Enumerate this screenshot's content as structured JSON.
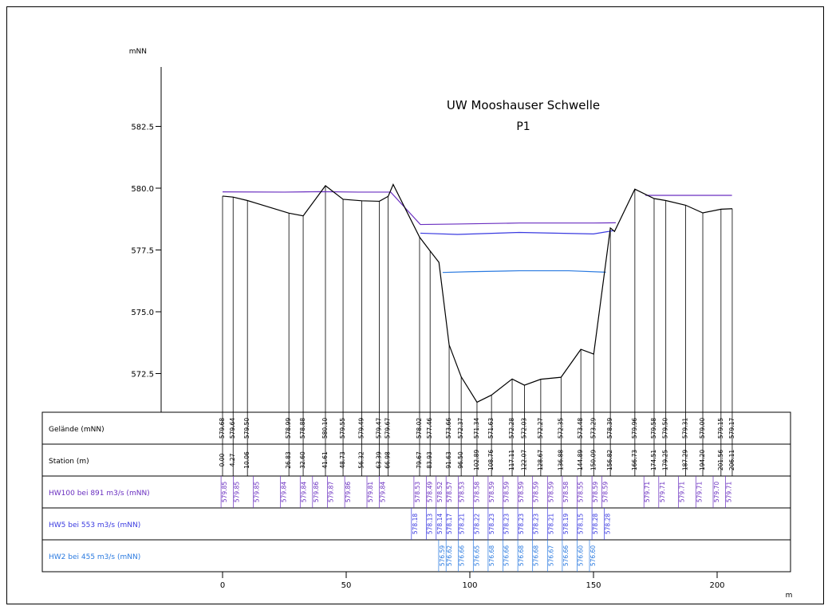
{
  "chart_data": {
    "type": "line",
    "title": "UW Mooshauser Schwelle",
    "subtitle": "P1",
    "ylabel": "mNN",
    "xlabel": "m",
    "ylim": [
      571.0,
      585.0
    ],
    "y_ticks": [
      "582.5",
      "580.0",
      "577.5",
      "575.0",
      "572.5"
    ],
    "y_tick_values": [
      582.5,
      580.0,
      577.5,
      575.0,
      572.5
    ],
    "xlim": [
      -20,
      225
    ],
    "x_ticks": [
      "0",
      "50",
      "100",
      "150",
      "200"
    ],
    "x_tick_values": [
      0,
      50,
      100,
      150,
      200
    ],
    "grid": false,
    "colors": {
      "terrain": "#000000",
      "hw100": "#6a2fc0",
      "hw5": "#3a3ae0",
      "hw2": "#2a7ae0"
    },
    "terrain": {
      "name": "Gelände (mNN)",
      "x": [
        0.0,
        4.27,
        10.06,
        26.83,
        32.6,
        41.61,
        48.73,
        56.32,
        63.39,
        66.98,
        69.0,
        79.67,
        83.93,
        87.5,
        91.63,
        96.5,
        102.89,
        108.76,
        117.11,
        122.07,
        128.67,
        136.88,
        144.89,
        150.09,
        156.82,
        158.5,
        166.73,
        174.51,
        179.25,
        187.29,
        194.2,
        201.56,
        206.11
      ],
      "y": [
        579.68,
        579.64,
        579.5,
        578.99,
        578.88,
        580.1,
        579.55,
        579.49,
        579.47,
        579.67,
        580.15,
        578.02,
        577.46,
        577.0,
        573.66,
        572.37,
        571.34,
        571.63,
        572.28,
        572.03,
        572.27,
        572.35,
        573.48,
        573.29,
        578.39,
        578.25,
        579.96,
        579.58,
        579.5,
        579.31,
        579.0,
        579.15,
        579.17
      ]
    },
    "stations": [
      "0.00",
      "4.27",
      "10.06",
      "26.83",
      "32.60",
      "41.61",
      "48.73",
      "56.32",
      "63.39",
      "66.98",
      "79.67",
      "83.93",
      "91.63",
      "96.50",
      "102.89",
      "108.76",
      "117.11",
      "122.07",
      "128.67",
      "136.88",
      "144.89",
      "150.09",
      "156.82",
      "166.73",
      "174.51",
      "179.25",
      "187.29",
      "194.20",
      "201.56",
      "206.11"
    ],
    "station_x": [
      0.0,
      4.27,
      10.06,
      26.83,
      32.6,
      41.61,
      48.73,
      56.32,
      63.39,
      66.98,
      79.67,
      83.93,
      91.63,
      96.5,
      102.89,
      108.76,
      117.11,
      122.07,
      128.67,
      136.88,
      144.89,
      150.09,
      156.82,
      166.73,
      174.51,
      179.25,
      187.29,
      194.2,
      201.56,
      206.11
    ],
    "gelaende": [
      "579.68",
      "579.64",
      "579.50",
      "578.99",
      "578.88",
      "580.10",
      "579.55",
      "579.49",
      "579.47",
      "579.67",
      "578.02",
      "577.46",
      "573.66",
      "572.37",
      "571.34",
      "571.63",
      "572.28",
      "572.03",
      "572.27",
      "572.35",
      "573.48",
      "573.29",
      "578.39",
      "579.96",
      "579.58",
      "579.50",
      "579.31",
      "579.00",
      "579.15",
      "579.17"
    ],
    "hw100": {
      "name": "HW100 bei 891 m3/s (mNN)",
      "line_x": [
        0,
        25,
        40,
        55,
        68,
        80,
        95,
        120,
        150,
        159
      ],
      "line_y": [
        579.85,
        579.84,
        579.86,
        579.84,
        579.84,
        578.53,
        578.55,
        578.59,
        578.59,
        578.6
      ],
      "line2_x": [
        171,
        206
      ],
      "line2_y": [
        579.71,
        579.71
      ],
      "label_x": [
        1,
        6,
        14,
        25,
        33,
        38,
        44,
        51,
        60,
        65,
        79,
        84,
        88,
        92,
        97,
        103,
        109,
        115,
        121,
        127,
        133,
        139,
        145,
        151,
        155,
        172,
        178,
        186,
        193,
        200,
        205
      ],
      "labels": [
        "579.85",
        "579.85",
        "579.85",
        "579.84",
        "579.84",
        "579.86",
        "579.87",
        "579.86",
        "579.81",
        "579.84",
        "578.53",
        "578.49",
        "578.52",
        "578.57",
        "578.53",
        "578.58",
        "578.59",
        "578.59",
        "578.59",
        "578.59",
        "578.59",
        "578.58",
        "578.55",
        "578.59",
        "578.59",
        "579.71",
        "579.71",
        "579.71",
        "579.71",
        "579.70",
        "579.71"
      ]
    },
    "hw5": {
      "name": "HW5 bei 553 m3/s  (mNN)",
      "line_x": [
        80,
        95,
        120,
        150,
        158
      ],
      "line_y": [
        578.18,
        578.13,
        578.21,
        578.15,
        578.28
      ],
      "label_x": [
        78,
        84,
        88,
        92,
        97,
        103,
        109,
        115,
        121,
        127,
        133,
        139,
        145,
        151,
        156
      ],
      "labels": [
        "578.18",
        "578.13",
        "578.14",
        "578.17",
        "578.21",
        "578.22",
        "578.23",
        "578.23",
        "578.23",
        "578.23",
        "578.21",
        "578.19",
        "578.15",
        "578.28",
        "578.28"
      ]
    },
    "hw2": {
      "name": "HW2 bei 455 m3/s (mNN)",
      "line_x": [
        89,
        100,
        120,
        140,
        155
      ],
      "line_y": [
        576.59,
        576.62,
        576.66,
        576.66,
        576.6
      ],
      "label_x": [
        89,
        92,
        97,
        103,
        109,
        115,
        121,
        127,
        133,
        139,
        145,
        150
      ],
      "labels": [
        "576.59",
        "576.62",
        "576.66",
        "576.65",
        "576.68",
        "576.66",
        "576.68",
        "576.68",
        "576.67",
        "576.66",
        "576.60",
        "576.60"
      ]
    },
    "rows": [
      "Gelände (mNN)",
      "Station (m)",
      "HW100 bei 891 m3/s (mNN)",
      "HW5 bei 553 m3/s  (mNN)",
      "HW2 bei 455 m3/s (mNN)"
    ]
  }
}
